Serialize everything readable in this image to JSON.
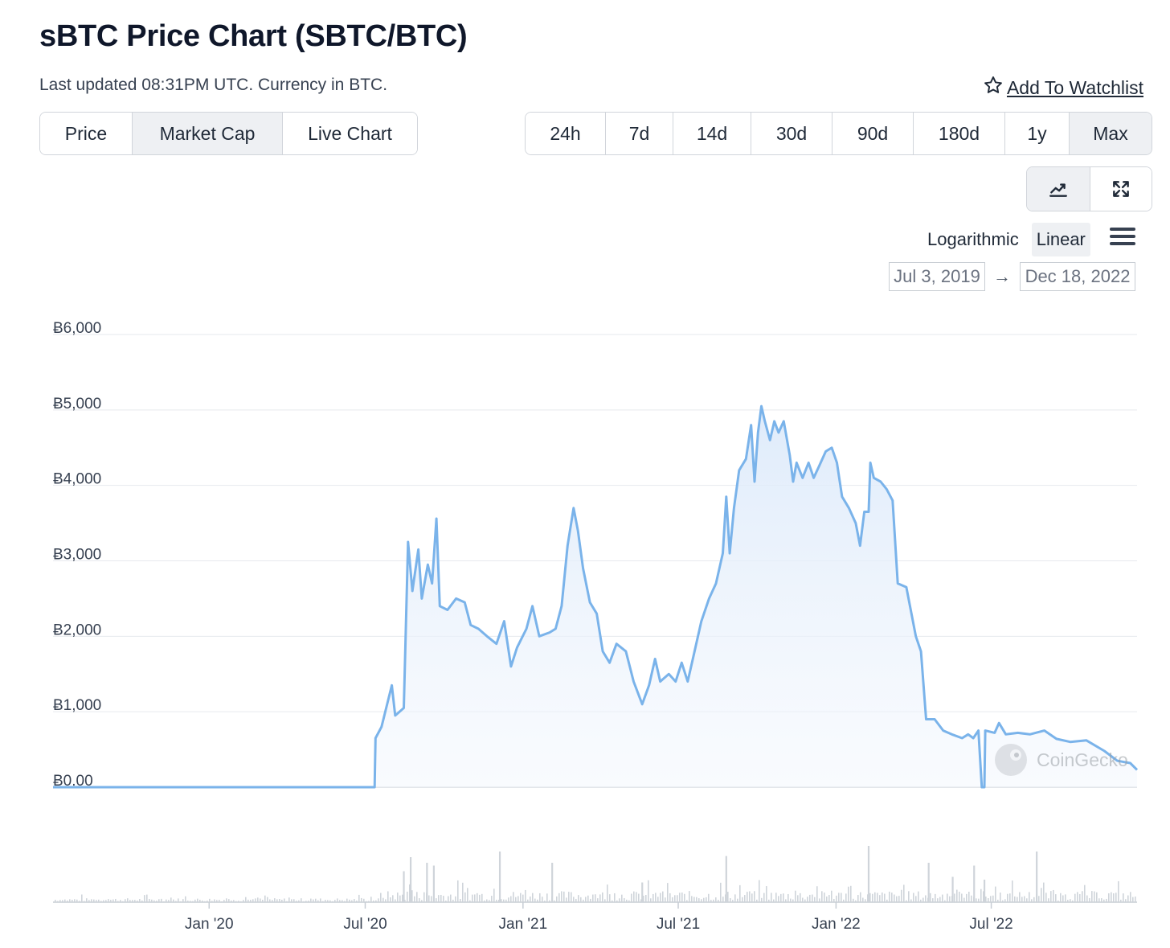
{
  "header": {
    "title": "sBTC Price Chart (SBTC/BTC)",
    "updated": "Last updated 08:31PM UTC. Currency in BTC.",
    "watchlist": "Add To Watchlist"
  },
  "tabs": [
    {
      "label": "Price",
      "active": false
    },
    {
      "label": "Market Cap",
      "active": true
    },
    {
      "label": "Live Chart",
      "active": false
    }
  ],
  "ranges": [
    {
      "label": "24h",
      "active": false
    },
    {
      "label": "7d",
      "active": false
    },
    {
      "label": "14d",
      "active": false
    },
    {
      "label": "30d",
      "active": false
    },
    {
      "label": "90d",
      "active": false
    },
    {
      "label": "180d",
      "active": false
    },
    {
      "label": "1y",
      "active": false
    },
    {
      "label": "Max",
      "active": true
    }
  ],
  "chart_type_icons": [
    "line-chart-icon",
    "expand-icon"
  ],
  "scale": {
    "log_label": "Logarithmic",
    "linear_label": "Linear",
    "active": "linear"
  },
  "date_range": {
    "from": "Jul 3, 2019",
    "arrow": "→",
    "to": "Dec 18, 2022"
  },
  "watermark": "CoinGecko",
  "colors": {
    "line": "#7ab3ea",
    "fill_top": "#dbe9fa",
    "grid": "#e6e9ee",
    "volume": "#cfd4da"
  },
  "chart_data": {
    "type": "area",
    "ylim": [
      0,
      6000
    ],
    "y_ticks": [
      {
        "value": 6000,
        "label": "Ƀ6,000"
      },
      {
        "value": 5000,
        "label": "Ƀ5,000"
      },
      {
        "value": 4000,
        "label": "Ƀ4,000"
      },
      {
        "value": 3000,
        "label": "Ƀ3,000"
      },
      {
        "value": 2000,
        "label": "Ƀ2,000"
      },
      {
        "value": 1000,
        "label": "Ƀ1,000"
      },
      {
        "value": 0,
        "label": "Ƀ0.00"
      }
    ],
    "xlim": [
      "2019-07-03",
      "2022-12-18"
    ],
    "x_ticks": [
      {
        "date": "2020-01-01",
        "label": "Jan '20"
      },
      {
        "date": "2020-07-01",
        "label": "Jul '20"
      },
      {
        "date": "2021-01-01",
        "label": "Jan '21"
      },
      {
        "date": "2021-07-01",
        "label": "Jul '21"
      },
      {
        "date": "2022-01-01",
        "label": "Jan '22"
      },
      {
        "date": "2022-07-01",
        "label": "Jul '22"
      }
    ],
    "series": [
      {
        "values": [
          [
            "2019-07-03",
            0
          ],
          [
            "2020-07-12",
            0
          ],
          [
            "2020-07-13",
            650
          ],
          [
            "2020-07-20",
            800
          ],
          [
            "2020-08-01",
            1350
          ],
          [
            "2020-08-05",
            950
          ],
          [
            "2020-08-15",
            1050
          ],
          [
            "2020-08-20",
            3250
          ],
          [
            "2020-08-25",
            2600
          ],
          [
            "2020-09-01",
            3150
          ],
          [
            "2020-09-05",
            2500
          ],
          [
            "2020-09-12",
            2950
          ],
          [
            "2020-09-17",
            2700
          ],
          [
            "2020-09-22",
            3560
          ],
          [
            "2020-09-26",
            2400
          ],
          [
            "2020-10-05",
            2350
          ],
          [
            "2020-10-15",
            2500
          ],
          [
            "2020-10-25",
            2450
          ],
          [
            "2020-11-01",
            2150
          ],
          [
            "2020-11-10",
            2100
          ],
          [
            "2020-11-20",
            2000
          ],
          [
            "2020-12-01",
            1900
          ],
          [
            "2020-12-10",
            2200
          ],
          [
            "2020-12-18",
            1600
          ],
          [
            "2020-12-25",
            1850
          ],
          [
            "2021-01-05",
            2100
          ],
          [
            "2021-01-12",
            2400
          ],
          [
            "2021-01-20",
            2000
          ],
          [
            "2021-02-01",
            2050
          ],
          [
            "2021-02-08",
            2100
          ],
          [
            "2021-02-15",
            2400
          ],
          [
            "2021-02-22",
            3200
          ],
          [
            "2021-03-01",
            3700
          ],
          [
            "2021-03-06",
            3400
          ],
          [
            "2021-03-12",
            2900
          ],
          [
            "2021-03-20",
            2450
          ],
          [
            "2021-03-28",
            2300
          ],
          [
            "2021-04-04",
            1800
          ],
          [
            "2021-04-12",
            1650
          ],
          [
            "2021-04-20",
            1900
          ],
          [
            "2021-05-01",
            1800
          ],
          [
            "2021-05-10",
            1400
          ],
          [
            "2021-05-20",
            1100
          ],
          [
            "2021-05-28",
            1350
          ],
          [
            "2021-06-04",
            1700
          ],
          [
            "2021-06-10",
            1400
          ],
          [
            "2021-06-20",
            1500
          ],
          [
            "2021-06-28",
            1400
          ],
          [
            "2021-07-05",
            1650
          ],
          [
            "2021-07-12",
            1400
          ],
          [
            "2021-07-18",
            1700
          ],
          [
            "2021-07-28",
            2200
          ],
          [
            "2021-08-06",
            2500
          ],
          [
            "2021-08-14",
            2700
          ],
          [
            "2021-08-22",
            3100
          ],
          [
            "2021-08-26",
            3850
          ],
          [
            "2021-08-30",
            3100
          ],
          [
            "2021-09-04",
            3700
          ],
          [
            "2021-09-10",
            4200
          ],
          [
            "2021-09-18",
            4350
          ],
          [
            "2021-09-24",
            4800
          ],
          [
            "2021-09-28",
            4050
          ],
          [
            "2021-10-02",
            4700
          ],
          [
            "2021-10-06",
            5050
          ],
          [
            "2021-10-10",
            4850
          ],
          [
            "2021-10-16",
            4600
          ],
          [
            "2021-10-21",
            4850
          ],
          [
            "2021-10-26",
            4700
          ],
          [
            "2021-11-01",
            4850
          ],
          [
            "2021-11-08",
            4400
          ],
          [
            "2021-11-12",
            4050
          ],
          [
            "2021-11-16",
            4300
          ],
          [
            "2021-11-23",
            4100
          ],
          [
            "2021-11-30",
            4300
          ],
          [
            "2021-12-06",
            4100
          ],
          [
            "2021-12-12",
            4250
          ],
          [
            "2021-12-20",
            4450
          ],
          [
            "2021-12-27",
            4500
          ],
          [
            "2022-01-02",
            4300
          ],
          [
            "2022-01-08",
            3850
          ],
          [
            "2022-01-16",
            3700
          ],
          [
            "2022-01-24",
            3500
          ],
          [
            "2022-01-29",
            3200
          ],
          [
            "2022-02-03",
            3650
          ],
          [
            "2022-02-08",
            3650
          ],
          [
            "2022-02-10",
            4300
          ],
          [
            "2022-02-14",
            4100
          ],
          [
            "2022-02-22",
            4050
          ],
          [
            "2022-03-01",
            3950
          ],
          [
            "2022-03-08",
            3800
          ],
          [
            "2022-03-14",
            2700
          ],
          [
            "2022-03-24",
            2650
          ],
          [
            "2022-04-04",
            2000
          ],
          [
            "2022-04-10",
            1800
          ],
          [
            "2022-04-16",
            900
          ],
          [
            "2022-04-26",
            900
          ],
          [
            "2022-05-06",
            750
          ],
          [
            "2022-05-16",
            700
          ],
          [
            "2022-05-28",
            650
          ],
          [
            "2022-06-04",
            700
          ],
          [
            "2022-06-10",
            650
          ],
          [
            "2022-06-16",
            750
          ],
          [
            "2022-06-20",
            0
          ],
          [
            "2022-06-23",
            0
          ],
          [
            "2022-06-24",
            750
          ],
          [
            "2022-07-05",
            720
          ],
          [
            "2022-07-10",
            850
          ],
          [
            "2022-07-18",
            700
          ],
          [
            "2022-08-01",
            720
          ],
          [
            "2022-08-15",
            700
          ],
          [
            "2022-09-01",
            750
          ],
          [
            "2022-09-15",
            640
          ],
          [
            "2022-10-01",
            600
          ],
          [
            "2022-10-20",
            620
          ],
          [
            "2022-11-10",
            480
          ],
          [
            "2022-11-25",
            350
          ],
          [
            "2022-12-10",
            320
          ],
          [
            "2022-12-18",
            230
          ]
        ]
      }
    ],
    "volume_spikes": [
      [
        "2020-08-14",
        0.55
      ],
      [
        "2020-08-22",
        0.8
      ],
      [
        "2020-09-10",
        0.7
      ],
      [
        "2020-09-18",
        0.65
      ],
      [
        "2020-12-04",
        0.9
      ],
      [
        "2021-02-03",
        0.7
      ],
      [
        "2021-05-19",
        0.35
      ],
      [
        "2021-08-25",
        0.82
      ],
      [
        "2022-02-07",
        1.0
      ],
      [
        "2022-04-18",
        0.7
      ],
      [
        "2022-05-16",
        0.45
      ],
      [
        "2022-06-10",
        0.65
      ],
      [
        "2022-06-22",
        0.4
      ],
      [
        "2022-08-22",
        0.9
      ]
    ]
  }
}
